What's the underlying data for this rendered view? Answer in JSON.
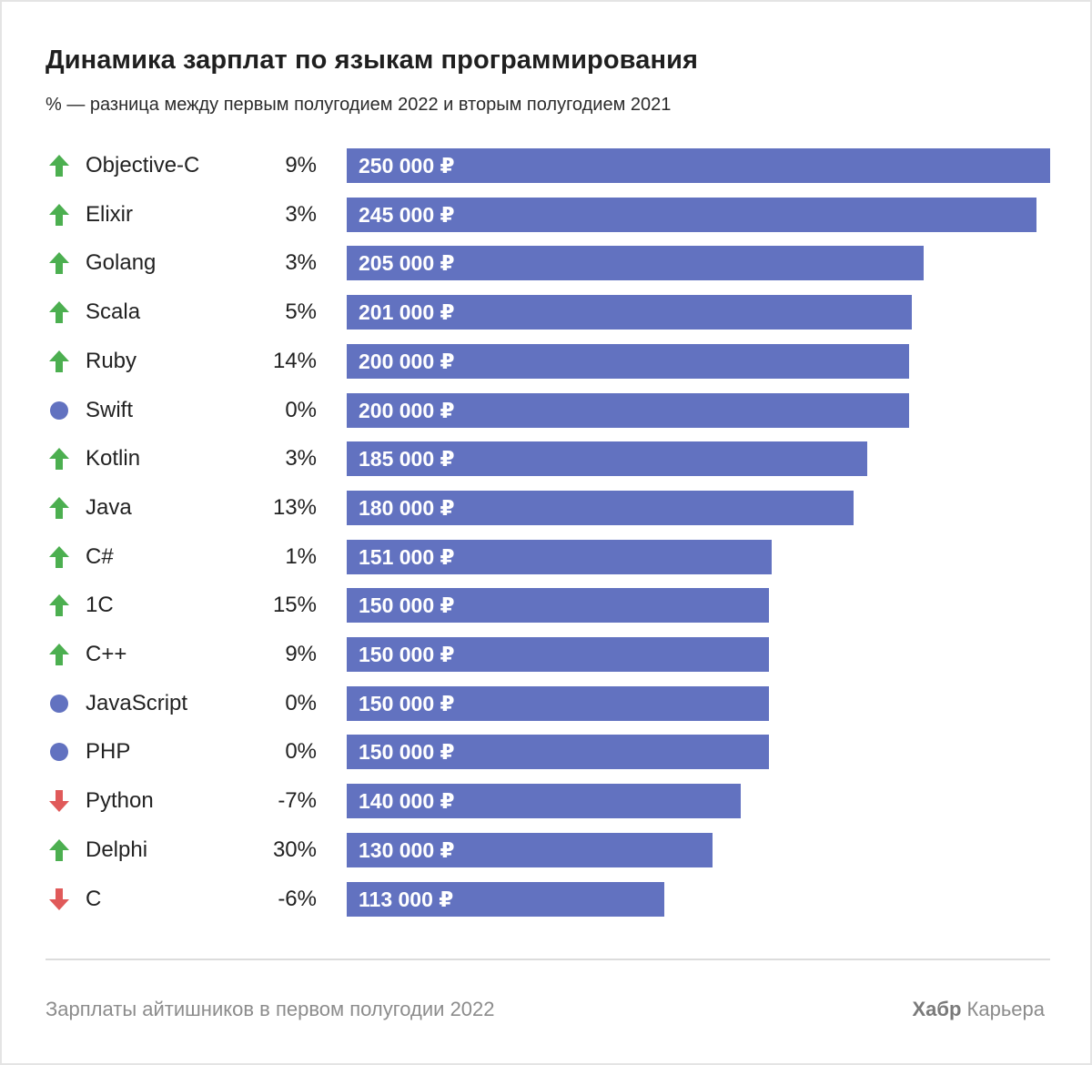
{
  "title": "Динамика зарплат по языкам программирования",
  "subtitle": "% — разница между первым полугодием 2022 и вторым полугодием 2021",
  "colors": {
    "bar": "#6272c0",
    "up": "#4caf50",
    "down": "#e05a5a",
    "neutral": "#6272c0"
  },
  "chart_data": {
    "type": "bar",
    "orientation": "horizontal",
    "title": "Динамика зарплат по языкам программирования",
    "subtitle": "% — разница между первым полугодием 2022 и вторым полугодием 2021",
    "xlim": [
      0,
      250000
    ],
    "rows": [
      {
        "label": "Objective-C",
        "trend": "up",
        "change": "9%",
        "value": 250000,
        "value_label": "250 000 ₽"
      },
      {
        "label": "Elixir",
        "trend": "up",
        "change": "3%",
        "value": 245000,
        "value_label": "245 000 ₽"
      },
      {
        "label": "Golang",
        "trend": "up",
        "change": "3%",
        "value": 205000,
        "value_label": "205 000 ₽"
      },
      {
        "label": "Scala",
        "trend": "up",
        "change": "5%",
        "value": 201000,
        "value_label": "201 000 ₽"
      },
      {
        "label": "Ruby",
        "trend": "up",
        "change": "14%",
        "value": 200000,
        "value_label": "200 000 ₽"
      },
      {
        "label": "Swift",
        "trend": "neutral",
        "change": "0%",
        "value": 200000,
        "value_label": "200 000 ₽"
      },
      {
        "label": "Kotlin",
        "trend": "up",
        "change": "3%",
        "value": 185000,
        "value_label": "185 000 ₽"
      },
      {
        "label": "Java",
        "trend": "up",
        "change": "13%",
        "value": 180000,
        "value_label": "180 000 ₽"
      },
      {
        "label": "C#",
        "trend": "up",
        "change": "1%",
        "value": 151000,
        "value_label": "151 000 ₽"
      },
      {
        "label": "1C",
        "trend": "up",
        "change": "15%",
        "value": 150000,
        "value_label": "150 000 ₽"
      },
      {
        "label": "C++",
        "trend": "up",
        "change": "9%",
        "value": 150000,
        "value_label": "150 000 ₽"
      },
      {
        "label": "JavaScript",
        "trend": "neutral",
        "change": "0%",
        "value": 150000,
        "value_label": "150 000 ₽"
      },
      {
        "label": "PHP",
        "trend": "neutral",
        "change": "0%",
        "value": 150000,
        "value_label": "150 000 ₽"
      },
      {
        "label": "Python",
        "trend": "down",
        "change": "-7%",
        "value": 140000,
        "value_label": "140 000 ₽"
      },
      {
        "label": "Delphi",
        "trend": "up",
        "change": "30%",
        "value": 130000,
        "value_label": "130 000 ₽"
      },
      {
        "label": "C",
        "trend": "down",
        "change": "-6%",
        "value": 113000,
        "value_label": "113 000 ₽"
      }
    ]
  },
  "footer": {
    "source": "Зарплаты айтишников в первом полугодии 2022",
    "brand_bold": "Хабр",
    "brand_rest": "Карьера"
  }
}
